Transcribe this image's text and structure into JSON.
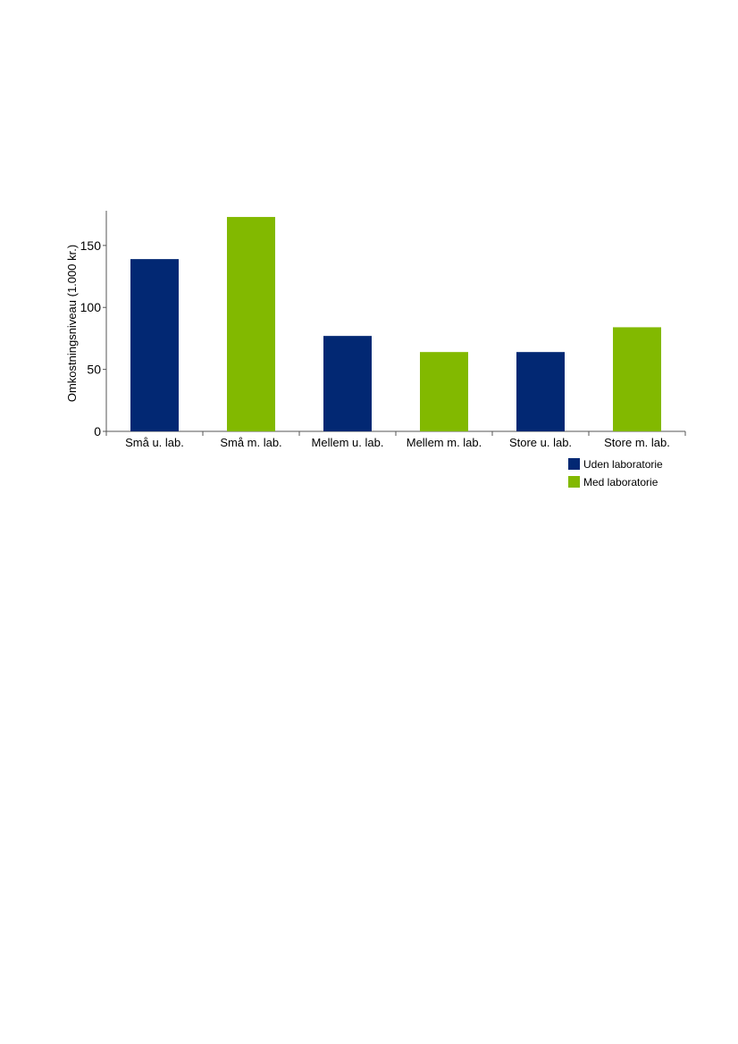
{
  "chart_data": {
    "type": "bar",
    "title": "",
    "xlabel": "",
    "ylabel": "Omkostningsniveau (1.000 kr.)",
    "ylim": [
      0,
      178
    ],
    "yticks": [
      0,
      50,
      100,
      150
    ],
    "grid": false,
    "legend_position": "bottom-right",
    "categories": [
      "Små u. lab.",
      "Små m. lab.",
      "Mellem u. lab.",
      "Mellem m. lab.",
      "Store u. lab.",
      "Store m. lab."
    ],
    "values": [
      139,
      173,
      77,
      64,
      64,
      84
    ],
    "groups": [
      "Uden laboratorie",
      "Med laboratorie",
      "Uden laboratorie",
      "Med laboratorie",
      "Uden laboratorie",
      "Med laboratorie"
    ],
    "legend": [
      {
        "name": "Uden laboratorie",
        "color": "#022873"
      },
      {
        "name": "Med laboratorie",
        "color": "#82b900"
      }
    ]
  }
}
